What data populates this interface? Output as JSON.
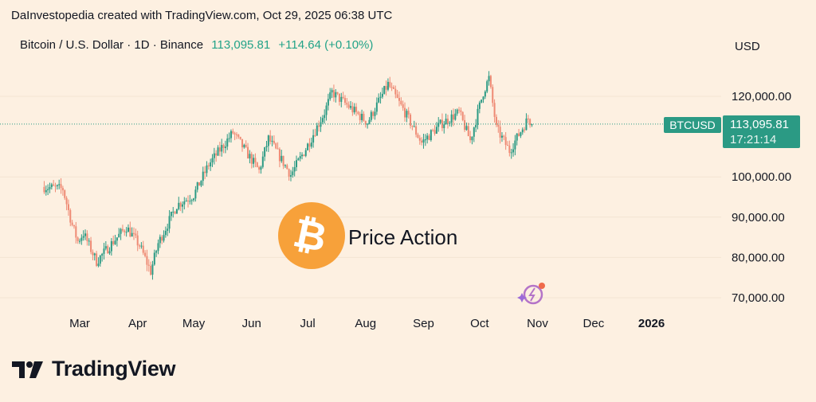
{
  "header": {
    "text": "DaInvestopedia created with TradingView.com, Oct 29, 2025 06:38 UTC"
  },
  "symbol": {
    "description": "Bitcoin / U.S. Dollar · 1D · Binance",
    "price": "113,095.81",
    "change": "+114.64 (+0.10%)"
  },
  "price_axis": {
    "currency": "USD"
  },
  "badge": {
    "name": "BTCUSD",
    "price": "113,095.81",
    "countdown": "17:21:14"
  },
  "watermark": {
    "text": "Price Action",
    "icon": "bitcoin-icon"
  },
  "footer": {
    "brand": "TradingView",
    "icon": "tradingview-logo-icon"
  },
  "colors": {
    "background": "#fdf0e1",
    "up": "#2b9a84",
    "down": "#ee8a74",
    "bitcoin": "#f7a13a",
    "price_line": "#2b9a84"
  },
  "chart_data": {
    "type": "candlestick",
    "interval": "1D",
    "y_axis_ticks": [
      "120,000.00",
      "100,000.00",
      "90,000.00",
      "80,000.00",
      "70,000.00"
    ],
    "y_tick_values": [
      120000,
      100000,
      90000,
      80000,
      70000
    ],
    "x_axis_ticks": [
      "Mar",
      "Apr",
      "May",
      "Jun",
      "Jul",
      "Aug",
      "Sep",
      "Oct",
      "Nov",
      "Dec",
      "2026"
    ],
    "last_price": 113095.81,
    "close_path": [
      {
        "d": "2025-02-10",
        "c": 97500
      },
      {
        "d": "2025-02-20",
        "c": 97000
      },
      {
        "d": "2025-02-25",
        "c": 88000
      },
      {
        "d": "2025-02-28",
        "c": 84000
      },
      {
        "d": "2025-03-03",
        "c": 86000
      },
      {
        "d": "2025-03-10",
        "c": 79000
      },
      {
        "d": "2025-03-20",
        "c": 84500
      },
      {
        "d": "2025-03-26",
        "c": 87500
      },
      {
        "d": "2025-04-02",
        "c": 83000
      },
      {
        "d": "2025-04-08",
        "c": 76500
      },
      {
        "d": "2025-04-12",
        "c": 83500
      },
      {
        "d": "2025-04-22",
        "c": 93000
      },
      {
        "d": "2025-05-01",
        "c": 95500
      },
      {
        "d": "2025-05-09",
        "c": 103000
      },
      {
        "d": "2025-05-22",
        "c": 111000
      },
      {
        "d": "2025-06-05",
        "c": 101500
      },
      {
        "d": "2025-06-10",
        "c": 109500
      },
      {
        "d": "2025-06-22",
        "c": 100500
      },
      {
        "d": "2025-06-30",
        "c": 107000
      },
      {
        "d": "2025-07-10",
        "c": 116000
      },
      {
        "d": "2025-07-14",
        "c": 121000
      },
      {
        "d": "2025-08-02",
        "c": 113500
      },
      {
        "d": "2025-08-13",
        "c": 123000
      },
      {
        "d": "2025-08-22",
        "c": 116000
      },
      {
        "d": "2025-08-31",
        "c": 108500
      },
      {
        "d": "2025-09-10",
        "c": 113000
      },
      {
        "d": "2025-09-20",
        "c": 116000
      },
      {
        "d": "2025-09-26",
        "c": 109000
      },
      {
        "d": "2025-10-03",
        "c": 121000
      },
      {
        "d": "2025-10-06",
        "c": 124500
      },
      {
        "d": "2025-10-10",
        "c": 112000
      },
      {
        "d": "2025-10-17",
        "c": 106500
      },
      {
        "d": "2025-10-27",
        "c": 114500
      },
      {
        "d": "2025-10-29",
        "c": 113095.81
      }
    ]
  }
}
